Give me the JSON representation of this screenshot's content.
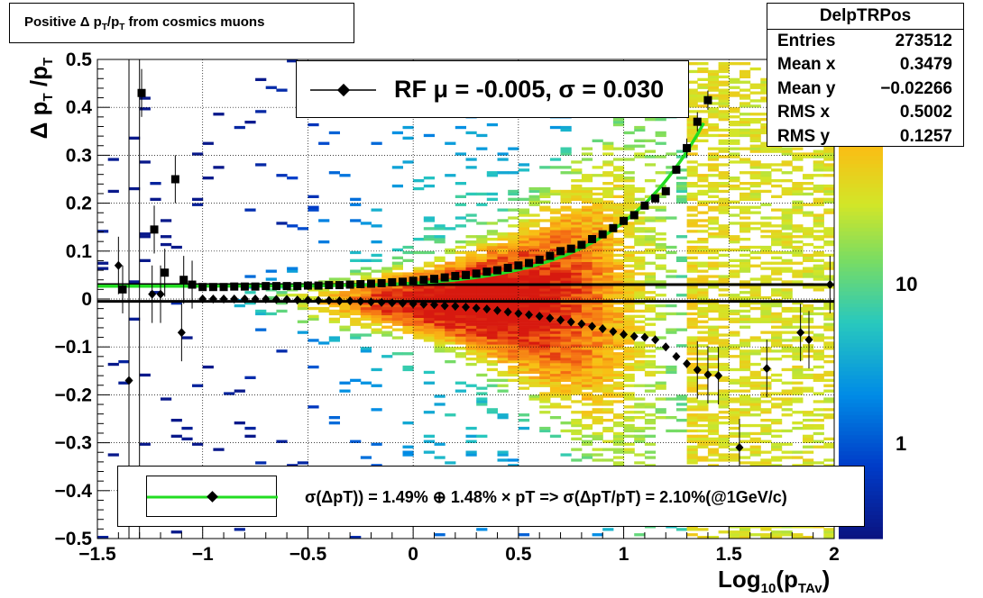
{
  "title": "Positive Δ p_T/p_T from cosmics muons",
  "title_parts": {
    "a": "Positive Δ p",
    "b": "T",
    "c": "/p",
    "d": "T",
    "e": " from cosmics muons"
  },
  "stats": {
    "name": "DelpTRPos",
    "rows": [
      {
        "label": "Entries",
        "value": "273512"
      },
      {
        "label": "Mean x",
        "value": "0.3479"
      },
      {
        "label": "Mean y",
        "value": "−0.02266"
      },
      {
        "label": "RMS x",
        "value": "0.5002"
      },
      {
        "label": "RMS y",
        "value": "0.1257"
      }
    ]
  },
  "rf_legend": "RF μ = -0.005, σ =   0.030",
  "fit_legend": "σ(ΔpT)) =  1.49% ⊕  1.48% × pT => σ(ΔpT/pT) =  2.10%(@1GeV/c)",
  "xaxis_title": {
    "main": "Log",
    "sub1": "10",
    "mid": "(p",
    "sub2": "TAv",
    "end": ")"
  },
  "yaxis_title": {
    "a": "Δ p",
    "b": "T",
    "c": " /p",
    "d": "T"
  },
  "colorbar_labels": [
    "10",
    "1"
  ],
  "colors": {
    "fit_curve": "#22dd22",
    "mean_line": "#000000",
    "frame": "#000000"
  },
  "chart_data": {
    "type": "heatmap",
    "xlim": [
      -1.5,
      2.0
    ],
    "ylim": [
      -0.5,
      0.5
    ],
    "xticks": [
      -1.5,
      -1,
      -0.5,
      0,
      0.5,
      1,
      1.5,
      2
    ],
    "xtick_labels": [
      "−1.5",
      "−1",
      "−0.5",
      "0",
      "0.5",
      "1",
      "1.5",
      "2"
    ],
    "yticks": [
      -0.5,
      -0.4,
      -0.3,
      -0.2,
      -0.1,
      0,
      0.1,
      0.2,
      0.3,
      0.4,
      0.5
    ],
    "ytick_labels": [
      "−0.5",
      "−0.4",
      "−0.3",
      "−0.2",
      "−0.1",
      "0",
      "0.1",
      "0.2",
      "0.3",
      "0.4",
      "0.5"
    ],
    "grid": true,
    "colorbar_scale": "log",
    "horizontal_lines": [
      0.03,
      -0.005
    ],
    "sigma_points": {
      "x": [
        -1.38,
        -1.29,
        -1.23,
        -1.18,
        -1.13,
        -1.09,
        -1.05,
        -1.0,
        -0.95,
        -0.9,
        -0.85,
        -0.8,
        -0.75,
        -0.7,
        -0.65,
        -0.6,
        -0.55,
        -0.5,
        -0.45,
        -0.4,
        -0.35,
        -0.3,
        -0.25,
        -0.2,
        -0.15,
        -0.1,
        -0.05,
        0.0,
        0.05,
        0.1,
        0.15,
        0.2,
        0.25,
        0.3,
        0.35,
        0.4,
        0.45,
        0.5,
        0.55,
        0.6,
        0.65,
        0.7,
        0.75,
        0.8,
        0.85,
        0.9,
        0.95,
        1.0,
        1.05,
        1.1,
        1.15,
        1.2,
        1.25,
        1.3,
        1.35,
        1.4
      ],
      "y": [
        0.02,
        0.43,
        0.145,
        0.055,
        0.25,
        0.04,
        0.03,
        0.025,
        0.025,
        0.025,
        0.026,
        0.026,
        0.026,
        0.027,
        0.027,
        0.027,
        0.027,
        0.028,
        0.028,
        0.029,
        0.029,
        0.03,
        0.031,
        0.032,
        0.033,
        0.035,
        0.036,
        0.038,
        0.04,
        0.042,
        0.045,
        0.048,
        0.05,
        0.053,
        0.057,
        0.06,
        0.065,
        0.07,
        0.075,
        0.082,
        0.09,
        0.1,
        0.105,
        0.113,
        0.125,
        0.135,
        0.148,
        0.163,
        0.175,
        0.195,
        0.21,
        0.225,
        0.27,
        0.315,
        0.37,
        0.415
      ]
    },
    "mean_points": {
      "x": [
        -1.4,
        -1.35,
        -1.24,
        -1.2,
        -1.1,
        -1.0,
        -0.95,
        -0.9,
        -0.85,
        -0.8,
        -0.75,
        -0.7,
        -0.65,
        -0.6,
        -0.55,
        -0.5,
        -0.45,
        -0.4,
        -0.35,
        -0.3,
        -0.25,
        -0.2,
        -0.15,
        -0.1,
        -0.05,
        0.0,
        0.05,
        0.1,
        0.15,
        0.2,
        0.25,
        0.3,
        0.35,
        0.4,
        0.45,
        0.5,
        0.55,
        0.6,
        0.65,
        0.7,
        0.75,
        0.8,
        0.85,
        0.9,
        0.95,
        1.0,
        1.05,
        1.1,
        1.15,
        1.2,
        1.25,
        1.3,
        1.35,
        1.4,
        1.45,
        1.55,
        1.68,
        1.84,
        1.88,
        1.98
      ],
      "y": [
        0.07,
        -0.17,
        0.01,
        0.01,
        -0.07,
        0.0,
        0.0,
        0.0,
        0.0,
        0.0,
        0.0,
        0.0,
        -0.001,
        -0.001,
        -0.002,
        -0.002,
        -0.003,
        -0.003,
        -0.004,
        -0.004,
        -0.005,
        -0.006,
        -0.007,
        -0.008,
        -0.009,
        -0.01,
        -0.011,
        -0.012,
        -0.014,
        -0.015,
        -0.017,
        -0.019,
        -0.021,
        -0.024,
        -0.027,
        -0.03,
        -0.033,
        -0.036,
        -0.04,
        -0.044,
        -0.048,
        -0.052,
        -0.057,
        -0.062,
        -0.068,
        -0.074,
        -0.078,
        -0.08,
        -0.085,
        -0.1,
        -0.12,
        -0.135,
        -0.148,
        -0.158,
        -0.16,
        -0.31,
        -0.145,
        -0.07,
        -0.085,
        0.03
      ]
    },
    "fit_curve": {
      "name": "σ(ΔpT)) =  1.49% ⊕  1.48% × pT => σ(ΔpT/pT) =  2.10%(@1GeV/c)",
      "x_range": [
        -1.5,
        1.38
      ]
    }
  }
}
